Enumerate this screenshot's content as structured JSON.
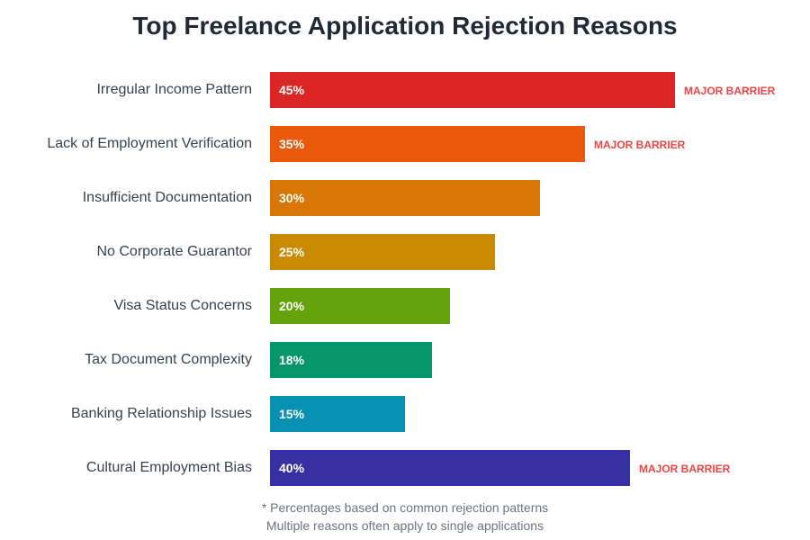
{
  "chart_data": {
    "type": "bar",
    "orientation": "horizontal",
    "title": "Top Freelance Application Rejection Reasons",
    "categories": [
      "Irregular Income Pattern",
      "Lack of Employment Verification",
      "Insufficient Documentation",
      "No Corporate Guarantor",
      "Visa Status Concerns",
      "Tax Document Complexity",
      "Banking Relationship Issues",
      "Cultural Employment Bias"
    ],
    "values": [
      45,
      35,
      30,
      25,
      20,
      18,
      15,
      40
    ],
    "value_labels": [
      "45%",
      "35%",
      "30%",
      "25%",
      "20%",
      "18%",
      "15%",
      "40%"
    ],
    "colors": [
      "#dc2626",
      "#ea580c",
      "#d97706",
      "#ca8a04",
      "#65a30d",
      "#059669",
      "#0891b2",
      "#3730a3"
    ],
    "annotations": [
      "MAJOR BARRIER",
      "MAJOR BARRIER",
      "",
      "",
      "",
      "",
      "",
      "MAJOR BARRIER"
    ],
    "annotation_color": "#ef4444",
    "grid": false,
    "footnotes": [
      "* Percentages based on common rejection patterns",
      "Multiple reasons often apply to single applications"
    ]
  }
}
